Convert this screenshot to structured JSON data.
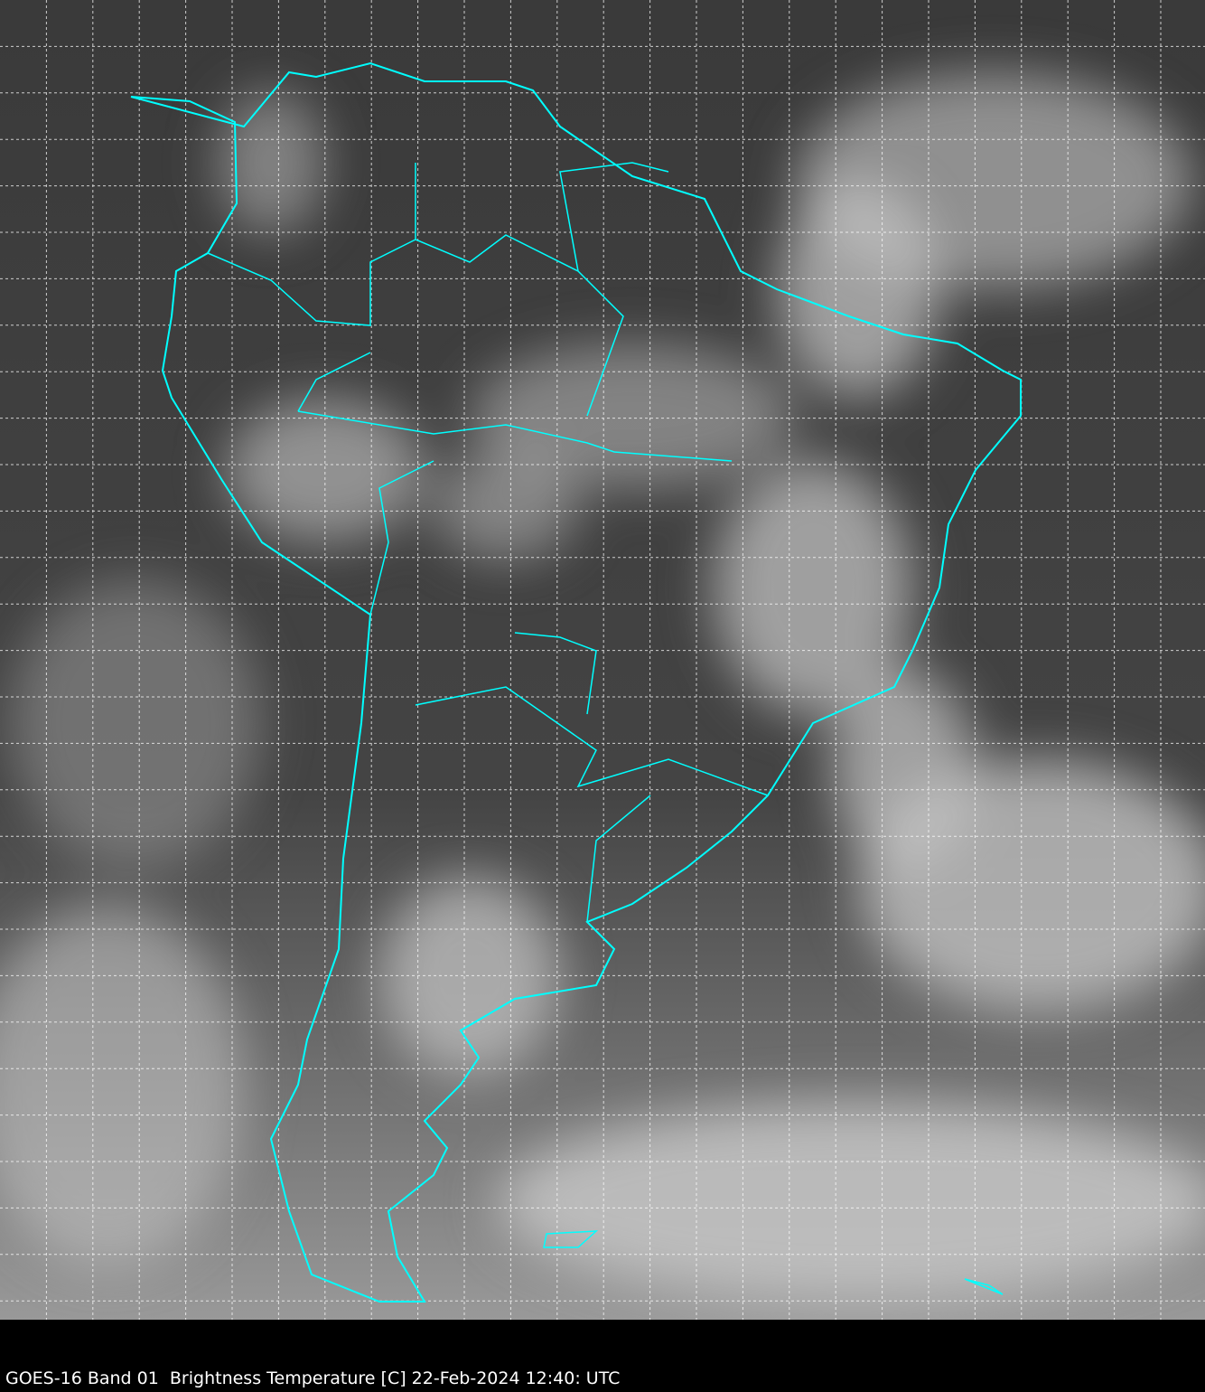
{
  "caption": "GOES-16 Band 01  Brightness Temperature [C] 22-Feb-2024 12:40: UTC",
  "colors": {
    "coastline": "#00ffff",
    "grid": "#ffffff",
    "background": "#000000"
  },
  "map": {
    "region": "South America",
    "grid": true,
    "imagery": "grayscale satellite"
  }
}
